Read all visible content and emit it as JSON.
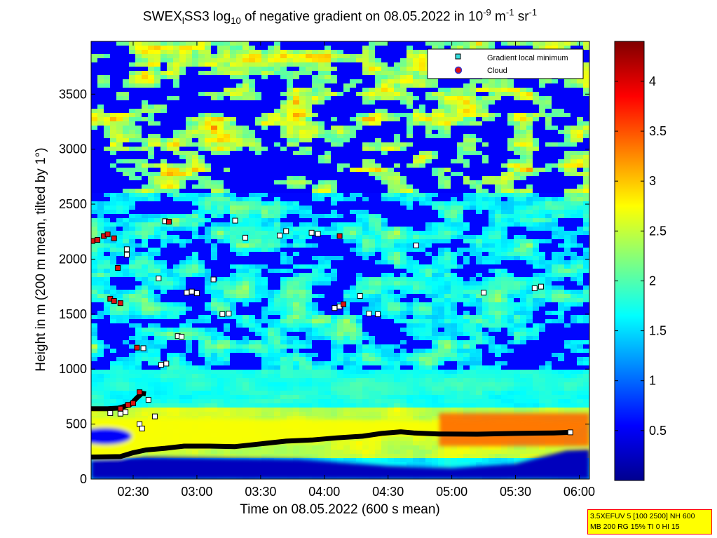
{
  "title": {
    "prefix": "SWEX",
    "sub1": "l",
    "mid": "SS3 log",
    "sub2": "10",
    "text": " of negative gradient on 08.05.2022 in 10",
    "sup1": "-9",
    "unit1": " m",
    "sup2": "-1",
    "unit2": " sr",
    "sup3": "-1"
  },
  "xlabel": "Time on 08.05.2022 (600 s mean)",
  "ylabel": "Height in m (200 m mean, tilted by 1°)",
  "legend": {
    "items": [
      "Gradient local minimum",
      "Cloud"
    ],
    "placement": "top-right"
  },
  "info_box": {
    "line1": "3.5XEFUV 5 [100 2500] NH 600",
    "line2": "MB 200 RG 15% TI 0 HI 15"
  },
  "colors": {
    "colormap": "jet",
    "minimum_marker": "#ffffff",
    "minimum_marker_legend": "#33dddd",
    "cloud_marker": "#dd1111",
    "info_box_bg": "#ffff00",
    "info_box_border": "#ff0000"
  },
  "chart_data": {
    "type": "heatmap",
    "x_unit": "hours (decimal, 08.05.2022)",
    "xlim": [
      2.17,
      6.08
    ],
    "ylim": [
      0,
      3980
    ],
    "x_ticks": [
      2.5,
      3.0,
      3.5,
      4.0,
      4.5,
      5.0,
      5.5,
      6.0
    ],
    "x_tick_labels": [
      "02:30",
      "03:00",
      "03:30",
      "04:00",
      "04:30",
      "05:00",
      "05:30",
      "06:00"
    ],
    "y_ticks": [
      0,
      500,
      1000,
      1500,
      2000,
      2500,
      3000,
      3500
    ],
    "y_tick_labels": [
      "0",
      "500",
      "1000",
      "1500",
      "2000",
      "2500",
      "3000",
      "3500"
    ],
    "colorbar": {
      "range": [
        0,
        4.4
      ],
      "ticks": [
        0.5,
        1,
        1.5,
        2,
        2.5,
        3,
        3.5,
        4
      ],
      "tick_labels": [
        "0.5",
        "1",
        "1.5",
        "2",
        "2.5",
        "3",
        "3.5",
        "4"
      ]
    },
    "lower_layer_line": [
      [
        2.17,
        200
      ],
      [
        2.4,
        205
      ],
      [
        2.5,
        240
      ],
      [
        2.6,
        265
      ],
      [
        2.75,
        280
      ],
      [
        2.9,
        300
      ],
      [
        3.1,
        300
      ],
      [
        3.3,
        295
      ],
      [
        3.5,
        320
      ],
      [
        3.7,
        345
      ],
      [
        3.9,
        355
      ],
      [
        4.1,
        375
      ],
      [
        4.3,
        390
      ],
      [
        4.45,
        415
      ],
      [
        4.6,
        430
      ],
      [
        4.7,
        420
      ],
      [
        4.9,
        410
      ],
      [
        5.2,
        408
      ],
      [
        5.5,
        415
      ],
      [
        5.8,
        420
      ],
      [
        5.93,
        425
      ]
    ],
    "upper_layer_line": [
      [
        2.17,
        640
      ],
      [
        2.3,
        640
      ],
      [
        2.38,
        645
      ],
      [
        2.43,
        660
      ],
      [
        2.48,
        680
      ],
      [
        2.53,
        740
      ],
      [
        2.57,
        780
      ],
      [
        2.6,
        775
      ]
    ],
    "gradient_local_minimum": [
      [
        2.32,
        600
      ],
      [
        2.4,
        595
      ],
      [
        2.44,
        610
      ],
      [
        2.55,
        500
      ],
      [
        2.57,
        460
      ],
      [
        2.62,
        720
      ],
      [
        2.67,
        570
      ],
      [
        2.72,
        1040
      ],
      [
        2.76,
        1050
      ],
      [
        2.85,
        1300
      ],
      [
        2.88,
        1295
      ],
      [
        2.58,
        1190
      ],
      [
        2.7,
        1825
      ],
      [
        2.92,
        1695
      ],
      [
        2.96,
        1705
      ],
      [
        3.0,
        1690
      ],
      [
        3.13,
        1815
      ],
      [
        3.2,
        1500
      ],
      [
        3.25,
        1505
      ],
      [
        3.3,
        2350
      ],
      [
        3.38,
        2195
      ],
      [
        3.65,
        2215
      ],
      [
        3.7,
        2255
      ],
      [
        3.9,
        2240
      ],
      [
        3.95,
        2230
      ],
      [
        4.08,
        1555
      ],
      [
        4.12,
        1570
      ],
      [
        4.28,
        1665
      ],
      [
        4.35,
        1505
      ],
      [
        4.42,
        1500
      ],
      [
        4.72,
        2125
      ],
      [
        5.25,
        1695
      ],
      [
        5.65,
        1735
      ],
      [
        5.7,
        1750
      ],
      [
        5.93,
        425
      ],
      [
        2.45,
        2090
      ],
      [
        2.45,
        2040
      ],
      [
        2.75,
        2345
      ]
    ],
    "cloud": [
      [
        2.18,
        2165
      ],
      [
        2.22,
        2175
      ],
      [
        2.27,
        2210
      ],
      [
        2.3,
        2225
      ],
      [
        2.35,
        2190
      ],
      [
        2.32,
        1640
      ],
      [
        2.35,
        1620
      ],
      [
        2.4,
        1600
      ],
      [
        2.38,
        1920
      ],
      [
        2.5,
        690
      ],
      [
        2.53,
        1195
      ],
      [
        2.55,
        790
      ],
      [
        2.78,
        2340
      ],
      [
        4.12,
        2210
      ],
      [
        4.15,
        1590
      ],
      [
        2.4,
        640
      ],
      [
        2.46,
        675
      ]
    ]
  }
}
